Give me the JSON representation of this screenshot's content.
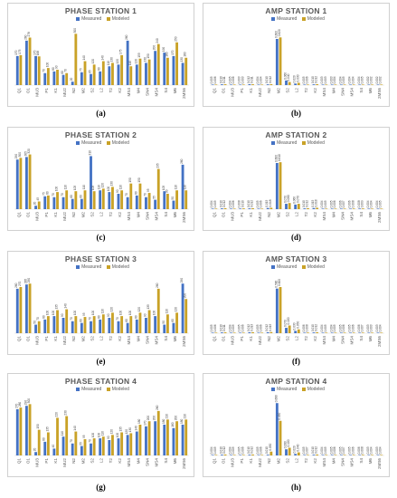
{
  "colors": {
    "measured": "#4472C4",
    "modeled": "#C9A227",
    "axis": "#d9d9d9"
  },
  "legend": {
    "measured": "Measured",
    "modeled": "Modeled"
  },
  "captions": [
    "(a)",
    "(b)",
    "(c)",
    "(d)",
    "(e)",
    "(f)",
    "(g)",
    "(h)"
  ],
  "chart_data": [
    {
      "type": "bar",
      "title": "PHASE STATION 1",
      "categories": [
        "Q1",
        "O1",
        "MU3",
        "P1",
        "K1",
        "MU2",
        "N2",
        "M2",
        "S2",
        "L2",
        "T2",
        "K2",
        "MS4",
        "M4",
        "SN4",
        "MS4",
        "S4",
        "M6",
        "2MS6"
      ],
      "series": [
        {
          "name": "Measured",
          "values": [
            170,
            260,
            170,
            70,
            80,
            60,
            20,
            75,
            65,
            80,
            110,
            120,
            260,
            120,
            130,
            200,
            190,
            170,
            130
          ]
        },
        {
          "name": "Modeled",
          "values": [
            175,
            278,
            168,
            100,
            90,
            70,
            300,
            140,
            120,
            140,
            130,
            175,
            110,
            155,
            150,
            240,
            160,
            250,
            160
          ]
        }
      ],
      "ylim": [
        0,
        360
      ]
    },
    {
      "type": "bar",
      "title": "AMP STATION 1",
      "categories": [
        "Q1",
        "O1",
        "MU3",
        "P1",
        "K1",
        "MU2",
        "N2",
        "M2",
        "S2",
        "L2",
        "T2",
        "K2",
        "MS4",
        "M4",
        "SN4",
        "MS4",
        "S4",
        "M6",
        "2MS6"
      ],
      "series": [
        {
          "name": "Measured",
          "values": [
            0.005,
            0.01,
            0.005,
            0.003,
            0.012,
            0.004,
            0.01,
            0.6,
            0.06,
            0.02,
            0.005,
            0.01,
            0.003,
            0.003,
            0.004,
            0.004,
            0.004,
            0.002,
            0.002
          ]
        },
        {
          "name": "Modeled",
          "values": [
            0.006,
            0.011,
            0.006,
            0.003,
            0.011,
            0.004,
            0.012,
            0.62,
            0.04,
            0.03,
            0.006,
            0.012,
            0.003,
            0.004,
            0.005,
            0.004,
            0.005,
            0.002,
            0.002
          ]
        }
      ],
      "ylim": [
        0,
        0.8
      ]
    },
    {
      "type": "bar",
      "title": "PHASE STATION 2",
      "categories": [
        "Q1",
        "O1",
        "MU3",
        "P1",
        "K1",
        "MU2",
        "N2",
        "M2",
        "S2",
        "L2",
        "T2",
        "K2",
        "MS4",
        "M4",
        "SN4",
        "MS4",
        "S4",
        "M6",
        "2MS6"
      ],
      "series": [
        {
          "name": "Measured",
          "values": [
            290,
            305,
            20,
            75,
            70,
            70,
            60,
            60,
            310,
            110,
            100,
            90,
            70,
            80,
            70,
            55,
            105,
            50,
            260
          ]
        },
        {
          "name": "Modeled",
          "values": [
            300,
            320,
            45,
            80,
            100,
            110,
            105,
            110,
            105,
            120,
            130,
            110,
            150,
            150,
            95,
            235,
            90,
            110,
            110
          ]
        }
      ],
      "ylim": [
        0,
        360
      ]
    },
    {
      "type": "bar",
      "title": "AMP STATION 2",
      "categories": [
        "Q1",
        "O1",
        "MU3",
        "P1",
        "K1",
        "MU2",
        "N2",
        "M2",
        "S2",
        "L2",
        "T2",
        "K2",
        "MS4",
        "M4",
        "SN4",
        "MS4",
        "S4",
        "M6",
        "2MS6"
      ],
      "series": [
        {
          "name": "Measured",
          "values": [
            0.004,
            0.01,
            0.004,
            0.008,
            0.01,
            0.005,
            0.015,
            0.6,
            0.07,
            0.06,
            0.01,
            0.015,
            0.004,
            0.005,
            0.006,
            0.006,
            0.008,
            0.004,
            0.004
          ]
        },
        {
          "name": "Modeled",
          "values": [
            0.005,
            0.012,
            0.006,
            0.01,
            0.012,
            0.006,
            0.018,
            0.61,
            0.08,
            0.07,
            0.012,
            0.018,
            0.005,
            0.006,
            0.007,
            0.008,
            0.009,
            0.004,
            0.005
          ]
        }
      ],
      "ylim": [
        0,
        0.8
      ]
    },
    {
      "type": "bar",
      "title": "PHASE STATION 3",
      "categories": [
        "Q1",
        "O1",
        "MU3",
        "P1",
        "K1",
        "MU2",
        "N2",
        "M2",
        "S2",
        "L2",
        "T2",
        "K2",
        "MS4",
        "M4",
        "SN4",
        "MS4",
        "S4",
        "M6",
        "2MS6"
      ],
      "series": [
        {
          "name": "Measured",
          "values": [
            260,
            285,
            50,
            80,
            100,
            90,
            70,
            60,
            70,
            80,
            90,
            70,
            60,
            80,
            90,
            100,
            50,
            60,
            290
          ]
        },
        {
          "name": "Modeled",
          "values": [
            270,
            290,
            70,
            100,
            135,
            140,
            100,
            95,
            100,
            110,
            120,
            100,
            100,
            120,
            135,
            260,
            110,
            120,
            200
          ]
        }
      ],
      "ylim": [
        0,
        360
      ]
    },
    {
      "type": "bar",
      "title": "AMP STATION 3",
      "categories": [
        "Q1",
        "O1",
        "MU3",
        "P1",
        "K1",
        "MU2",
        "N2",
        "M2",
        "S2",
        "L2",
        "T2",
        "K2",
        "MS4",
        "M4",
        "SN4",
        "MS4",
        "S4",
        "M6",
        "2MS6"
      ],
      "series": [
        {
          "name": "Measured",
          "values": [
            0.005,
            0.01,
            0.004,
            0.005,
            0.012,
            0.005,
            0.012,
            0.58,
            0.07,
            0.03,
            0.006,
            0.01,
            0.004,
            0.004,
            0.005,
            0.005,
            0.006,
            0.003,
            0.003
          ]
        },
        {
          "name": "Modeled",
          "values": [
            0.006,
            0.011,
            0.005,
            0.006,
            0.013,
            0.006,
            0.015,
            0.6,
            0.1,
            0.05,
            0.008,
            0.012,
            0.005,
            0.005,
            0.006,
            0.006,
            0.007,
            0.003,
            0.004
          ]
        }
      ],
      "ylim": [
        0,
        0.8
      ]
    },
    {
      "type": "bar",
      "title": "PHASE STATION 4",
      "categories": [
        "Q1",
        "O1",
        "MU3",
        "P1",
        "K1",
        "MU2",
        "N2",
        "M2",
        "S2",
        "L2",
        "T2",
        "K2",
        "MS4",
        "M4",
        "SN4",
        "MS4",
        "S4",
        "M6",
        "2MS6"
      ],
      "series": [
        {
          "name": "Measured",
          "values": [
            270,
            290,
            20,
            80,
            40,
            110,
            70,
            55,
            70,
            100,
            90,
            100,
            120,
            140,
            170,
            200,
            180,
            160,
            180
          ]
        },
        {
          "name": "Modeled",
          "values": [
            280,
            300,
            150,
            135,
            220,
            230,
            140,
            95,
            100,
            110,
            120,
            135,
            130,
            180,
            200,
            260,
            210,
            200,
            210
          ]
        }
      ],
      "ylim": [
        0,
        360
      ]
    },
    {
      "type": "bar",
      "title": "AMP STATION 4",
      "categories": [
        "Q1",
        "O1",
        "MU3",
        "P1",
        "K1",
        "MU2",
        "N2",
        "M2",
        "S2",
        "L2",
        "T2",
        "K2",
        "MS4",
        "M4",
        "SN4",
        "MS4",
        "S4",
        "M6",
        "2MS6"
      ],
      "series": [
        {
          "name": "Measured",
          "values": [
            0.004,
            0.01,
            0.004,
            0.005,
            0.01,
            0.005,
            0.01,
            0.68,
            0.08,
            0.02,
            0.005,
            0.01,
            0.004,
            0.005,
            0.005,
            0.005,
            0.006,
            0.003,
            0.003
          ]
        },
        {
          "name": "Modeled",
          "values": [
            0.005,
            0.012,
            0.005,
            0.006,
            0.012,
            0.006,
            0.05,
            0.45,
            0.1,
            0.04,
            0.007,
            0.012,
            0.005,
            0.006,
            0.007,
            0.006,
            0.008,
            0.004,
            0.004
          ]
        }
      ],
      "ylim": [
        0,
        0.8
      ]
    }
  ]
}
